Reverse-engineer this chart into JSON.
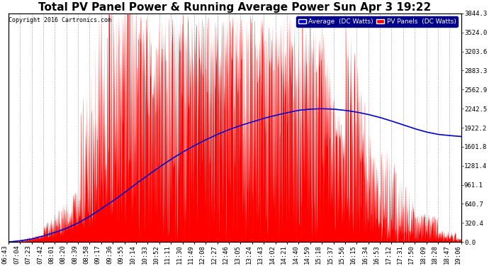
{
  "title": "Total PV Panel Power & Running Average Power Sun Apr 3 19:22",
  "copyright": "Copyright 2016 Cartronics.com",
  "legend_avg": "Average  (DC Watts)",
  "legend_pv": "PV Panels  (DC Watts)",
  "ylabel_right_values": [
    0.0,
    320.4,
    640.7,
    961.1,
    1281.4,
    1601.8,
    1922.2,
    2242.5,
    2562.9,
    2883.3,
    3203.6,
    3524.0,
    3844.3
  ],
  "ymax": 3844.3,
  "ymin": 0.0,
  "xtick_labels": [
    "06:43",
    "07:04",
    "07:23",
    "07:42",
    "08:01",
    "08:20",
    "08:39",
    "08:58",
    "09:17",
    "09:36",
    "09:55",
    "10:14",
    "10:33",
    "10:52",
    "11:11",
    "11:30",
    "11:49",
    "12:08",
    "12:27",
    "12:46",
    "13:05",
    "13:24",
    "13:43",
    "14:02",
    "14:21",
    "14:40",
    "14:59",
    "15:18",
    "15:37",
    "15:56",
    "16:15",
    "16:34",
    "16:53",
    "17:12",
    "17:31",
    "17:50",
    "18:09",
    "18:28",
    "18:47",
    "19:06"
  ],
  "bg_color": "#ffffff",
  "grid_color": "#b0b0b0",
  "pv_color": "#ff0000",
  "avg_color": "#0000cc",
  "title_fontsize": 11,
  "copyright_fontsize": 6,
  "tick_fontsize": 6.5,
  "avg_data": [
    0,
    20,
    50,
    100,
    160,
    230,
    320,
    430,
    560,
    690,
    830,
    980,
    1120,
    1260,
    1390,
    1510,
    1620,
    1720,
    1810,
    1890,
    1960,
    2020,
    2080,
    2130,
    2175,
    2215,
    2235,
    2242,
    2235,
    2215,
    2185,
    2145,
    2095,
    2035,
    1970,
    1905,
    1850,
    1810,
    1790,
    1775
  ]
}
